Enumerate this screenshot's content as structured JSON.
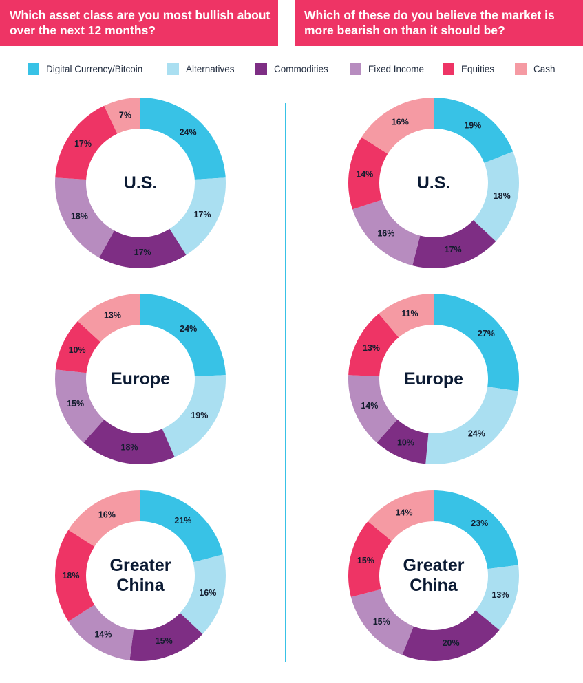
{
  "headers": {
    "left": "Which asset class are you most bullish about over the next 12 months?",
    "right": "Which of these do you believe the market is more bearish on than it should be?"
  },
  "legend": [
    {
      "label": "Digital Currency/Bitcoin",
      "color": "#38c2e6"
    },
    {
      "label": "Alternatives",
      "color": "#aadff1"
    },
    {
      "label": "Commodities",
      "color": "#7e2e84"
    },
    {
      "label": "Fixed Income",
      "color": "#b78cbf"
    },
    {
      "label": "Equities",
      "color": "#ee3465"
    },
    {
      "label": "Cash",
      "color": "#f59aa3"
    }
  ],
  "chart_data": [
    {
      "type": "pie",
      "group": "bullish",
      "region": "U.S.",
      "categories": [
        "Digital Currency/Bitcoin",
        "Alternatives",
        "Commodities",
        "Fixed Income",
        "Equities",
        "Cash"
      ],
      "values": [
        24,
        17,
        17,
        18,
        17,
        7
      ],
      "labels": [
        "24%",
        "17%",
        "17%",
        "18%",
        "17%",
        "7%"
      ]
    },
    {
      "type": "pie",
      "group": "bullish",
      "region": "Europe",
      "categories": [
        "Digital Currency/Bitcoin",
        "Alternatives",
        "Commodities",
        "Fixed Income",
        "Equities",
        "Cash"
      ],
      "values": [
        24,
        19,
        18,
        15,
        10,
        13
      ],
      "labels": [
        "24%",
        "19%",
        "18%",
        "15%",
        "10%",
        "13%"
      ]
    },
    {
      "type": "pie",
      "group": "bullish",
      "region": "Greater China",
      "categories": [
        "Digital Currency/Bitcoin",
        "Alternatives",
        "Commodities",
        "Fixed Income",
        "Equities",
        "Cash"
      ],
      "values": [
        21,
        16,
        15,
        14,
        18,
        16
      ],
      "labels": [
        "21%",
        "16%",
        "15%",
        "14%",
        "18%",
        "16%"
      ]
    },
    {
      "type": "pie",
      "group": "bearish",
      "region": "U.S.",
      "categories": [
        "Digital Currency/Bitcoin",
        "Alternatives",
        "Commodities",
        "Fixed Income",
        "Equities",
        "Cash"
      ],
      "values": [
        19,
        18,
        17,
        16,
        14,
        16
      ],
      "labels": [
        "19%",
        "18%",
        "17%",
        "16%",
        "14%",
        "16%"
      ]
    },
    {
      "type": "pie",
      "group": "bearish",
      "region": "Europe",
      "categories": [
        "Digital Currency/Bitcoin",
        "Alternatives",
        "Commodities",
        "Fixed Income",
        "Equities",
        "Cash"
      ],
      "values": [
        27,
        24,
        10,
        14,
        13,
        11
      ],
      "labels": [
        "27%",
        "24%",
        "10%",
        "14%",
        "13%",
        "11%"
      ]
    },
    {
      "type": "pie",
      "group": "bearish",
      "region": "Greater China",
      "categories": [
        "Digital Currency/Bitcoin",
        "Alternatives",
        "Commodities",
        "Fixed Income",
        "Equities",
        "Cash"
      ],
      "values": [
        23,
        13,
        20,
        15,
        15,
        14
      ],
      "labels": [
        "23%",
        "13%",
        "20%",
        "15%",
        "15%",
        "14%"
      ]
    }
  ]
}
